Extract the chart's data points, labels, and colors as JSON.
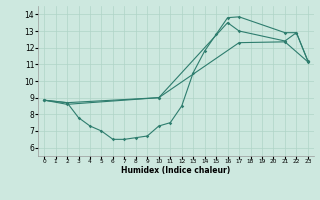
{
  "xlabel": "Humidex (Indice chaleur)",
  "bg_color": "#cde8df",
  "grid_color": "#b0d4c8",
  "line_color": "#2e7d6e",
  "xlim": [
    -0.5,
    23.5
  ],
  "ylim": [
    5.5,
    14.5
  ],
  "xticks": [
    0,
    1,
    2,
    3,
    4,
    5,
    6,
    7,
    8,
    9,
    10,
    11,
    12,
    13,
    14,
    15,
    16,
    17,
    18,
    19,
    20,
    21,
    22,
    23
  ],
  "yticks": [
    6,
    7,
    8,
    9,
    10,
    11,
    12,
    13,
    14
  ],
  "line1_x": [
    0,
    2,
    3,
    4,
    5,
    6,
    7,
    8,
    9,
    10,
    11,
    12,
    13,
    14,
    15,
    16,
    17,
    21,
    22,
    23
  ],
  "line1_y": [
    8.85,
    8.7,
    7.8,
    7.3,
    7.0,
    6.5,
    6.5,
    6.6,
    6.7,
    7.3,
    7.5,
    8.5,
    10.5,
    11.8,
    12.8,
    13.8,
    13.85,
    12.9,
    12.9,
    11.2
  ],
  "line2_x": [
    0,
    2,
    10,
    16,
    17,
    21,
    22,
    23
  ],
  "line2_y": [
    8.85,
    8.7,
    9.0,
    13.5,
    13.0,
    12.4,
    12.9,
    11.2
  ],
  "line3_x": [
    0,
    2,
    10,
    17,
    21,
    23
  ],
  "line3_y": [
    8.85,
    8.6,
    9.0,
    12.3,
    12.35,
    11.15
  ]
}
